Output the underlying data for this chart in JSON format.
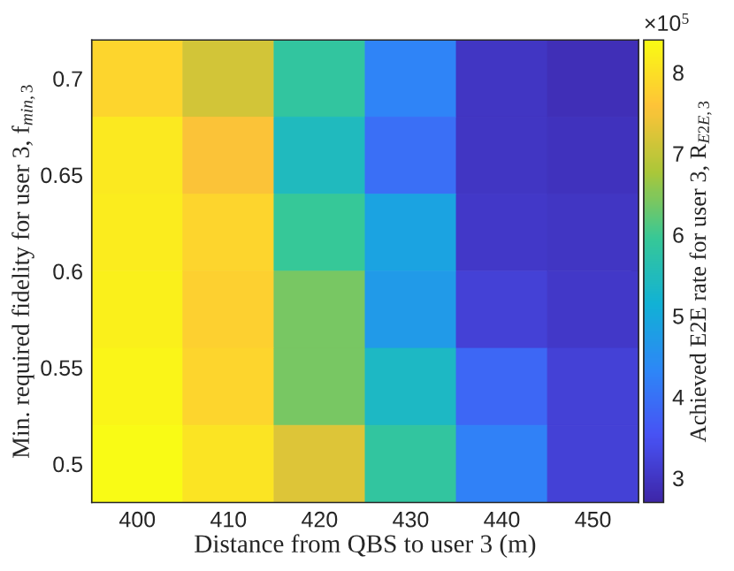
{
  "chart_data": {
    "type": "heatmap",
    "xlabel": "Distance from QBS to user 3 (m)",
    "ylabel": "Min. required fidelity for user 3, f$_{min,3}$",
    "clabel": "Achieved E2E rate for user 3, R$_{E2E,3}$",
    "annotations": [
      "×10$^{5}$"
    ],
    "x": [
      400,
      410,
      420,
      430,
      440,
      450
    ],
    "xlim": [
      395,
      455
    ],
    "xticks": [
      400,
      410,
      420,
      430,
      440,
      450
    ],
    "ylim": [
      0.48,
      0.72
    ],
    "yticks": [
      0.5,
      0.55,
      0.6,
      0.65,
      0.7
    ],
    "cells": [
      [
        7.83,
        7.15,
        5.84,
        4.3,
        2.99,
        2.87
      ],
      [
        8.12,
        7.55,
        5.44,
        3.95,
        2.99,
        2.93
      ],
      [
        8.17,
        7.83,
        5.95,
        4.87,
        3.04,
        2.99
      ],
      [
        8.23,
        7.77,
        6.41,
        4.7,
        3.21,
        3.04
      ],
      [
        8.29,
        7.83,
        6.41,
        5.38,
        3.84,
        3.21
      ],
      [
        8.4,
        8.06,
        7.26,
        5.84,
        4.24,
        3.21
      ]
    ],
    "clim": [
      2.7,
      8.4
    ],
    "cticks": [
      3,
      4,
      5,
      6,
      7,
      8
    ]
  }
}
